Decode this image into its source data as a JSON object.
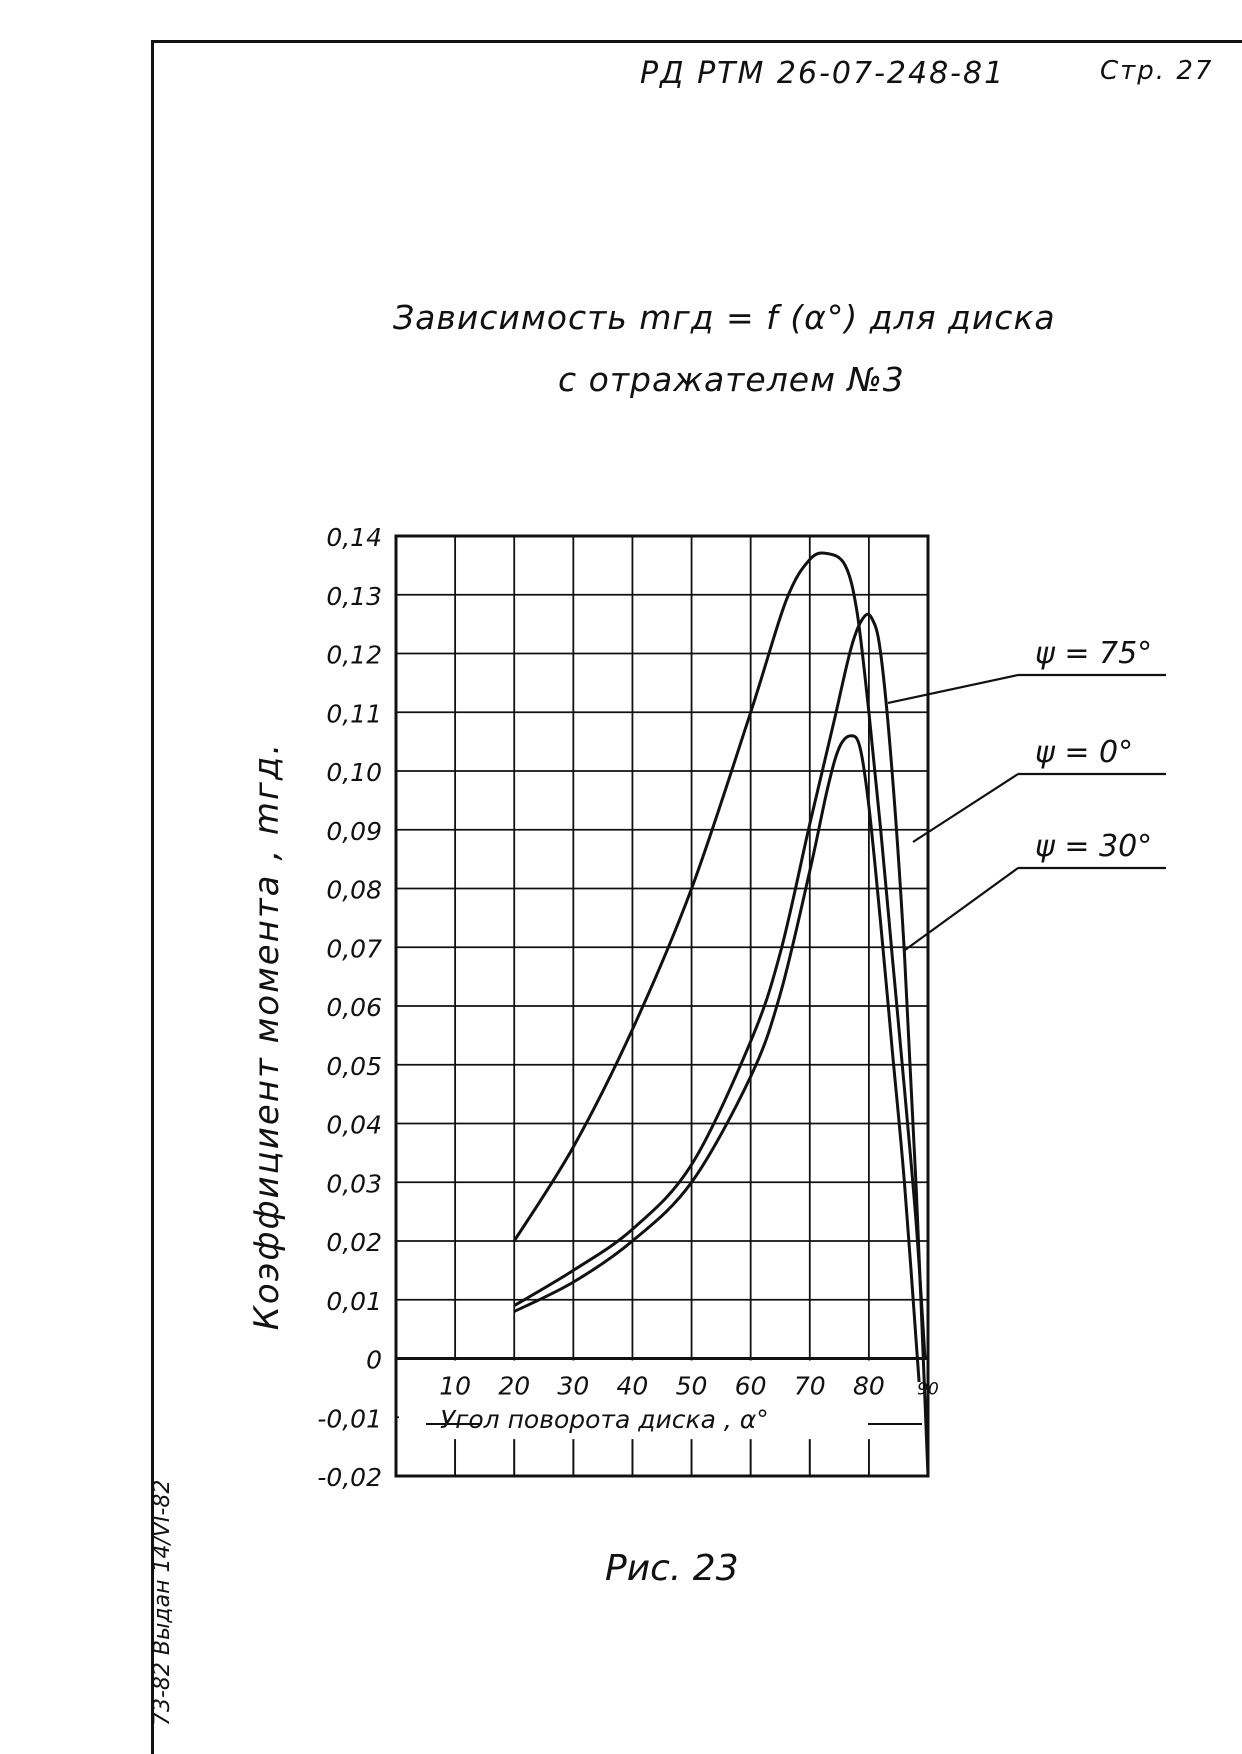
{
  "header": {
    "doc_code": "РД РТМ 26-07-248-81",
    "page": "Стр. 27"
  },
  "title": {
    "line1": "Зависимость mгд = f (α°) для диска",
    "line2": "с отражателем №3"
  },
  "caption": "Рис. 23",
  "side_note": "73-82 Выдан 14/VI-82",
  "colors": {
    "ink": "#111111",
    "paper": "#ffffff"
  },
  "chart_data": {
    "type": "line",
    "xlabel": "Угол поворота диска , α°",
    "ylabel": "Коэффициент момента , mгд.",
    "x_ticks": [
      "10",
      "20",
      "30",
      "40",
      "50",
      "60",
      "70",
      "80",
      "90"
    ],
    "y_ticks": [
      "0,14",
      "0,13",
      "0,12",
      "0,11",
      "0,10",
      "0,09",
      "0,08",
      "0,07",
      "0,06",
      "0,05",
      "0,04",
      "0,03",
      "0,02",
      "0,01",
      "0",
      "-0,01",
      "-0,02"
    ],
    "xlim": [
      0,
      90
    ],
    "ylim": [
      -0.02,
      0.14
    ],
    "grid": true,
    "legend": "right, leader lines",
    "series": [
      {
        "name": "ψ = 75°",
        "x": [
          20,
          30,
          40,
          50,
          60,
          66,
          70,
          73,
          76,
          78,
          80,
          82,
          84,
          86,
          88,
          89.5
        ],
        "y": [
          0.02,
          0.036,
          0.056,
          0.08,
          0.11,
          0.129,
          0.136,
          0.137,
          0.135,
          0.127,
          0.11,
          0.09,
          0.068,
          0.046,
          0.023,
          0.0
        ]
      },
      {
        "name": "ψ = 0°",
        "x": [
          20,
          30,
          40,
          50,
          60,
          65,
          70,
          74,
          77,
          79,
          80.5,
          82,
          84,
          86,
          88,
          90
        ],
        "y": [
          0.009,
          0.015,
          0.022,
          0.033,
          0.054,
          0.069,
          0.091,
          0.108,
          0.121,
          0.126,
          0.126,
          0.12,
          0.099,
          0.069,
          0.029,
          -0.02
        ]
      },
      {
        "name": "ψ = 30°",
        "x": [
          20,
          30,
          40,
          50,
          60,
          65,
          70,
          73,
          75,
          77,
          78.5,
          80,
          82,
          84,
          86,
          88.5
        ],
        "y": [
          0.008,
          0.013,
          0.02,
          0.03,
          0.048,
          0.062,
          0.083,
          0.097,
          0.104,
          0.106,
          0.104,
          0.094,
          0.074,
          0.052,
          0.03,
          -0.004
        ]
      }
    ]
  }
}
